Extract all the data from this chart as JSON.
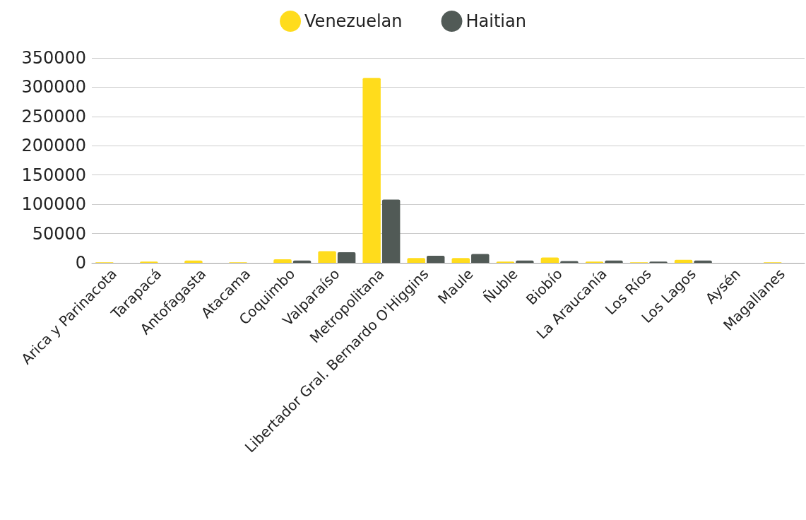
{
  "chart_data": {
    "type": "bar",
    "categories": [
      "Arica y Parinacota",
      "Tarapacá",
      "Antofagasta",
      "Atacama",
      "Coquimbo",
      "Valparaíso",
      "Metropolitana",
      "Libertador Gral. Bernardo O'Higgins",
      "Maule",
      "Ñuble",
      "Biobío",
      "La Araucanía",
      "Los Ríos",
      "Los Lagos",
      "Aysén",
      "Magallanes"
    ],
    "series": [
      {
        "name": "Venezuelan",
        "color": "#ffdc1c",
        "values": [
          1000,
          2000,
          4000,
          1000,
          6000,
          20000,
          316000,
          8000,
          8000,
          2000,
          9000,
          2000,
          1000,
          5000,
          0,
          1000
        ]
      },
      {
        "name": "Haitian",
        "color": "#515a56",
        "values": [
          0,
          0,
          0,
          0,
          4000,
          18000,
          108000,
          12000,
          15000,
          4000,
          3000,
          4000,
          2000,
          4000,
          0,
          0
        ]
      }
    ],
    "ylim": [
      0,
      350000
    ],
    "yticks": [
      0,
      50000,
      100000,
      150000,
      200000,
      250000,
      300000,
      350000
    ],
    "grid": "y",
    "legend": "top"
  }
}
